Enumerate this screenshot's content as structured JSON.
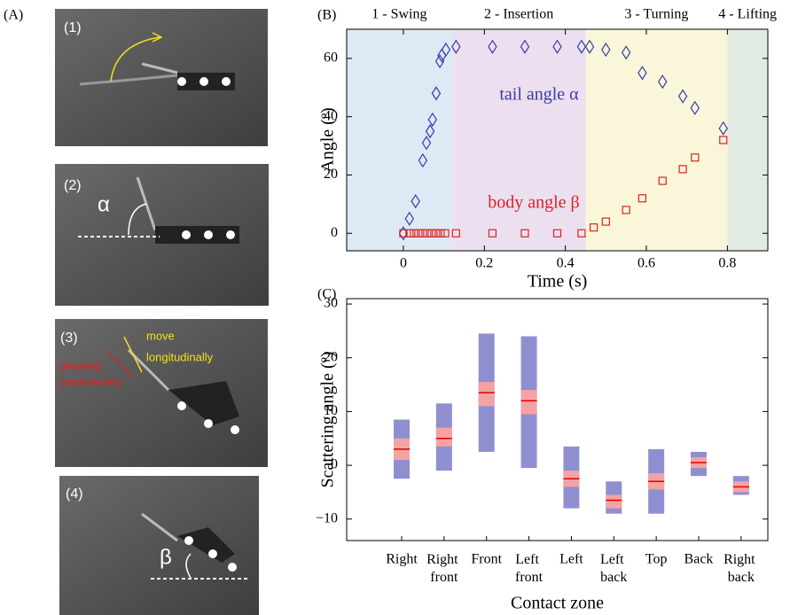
{
  "panel_labels": [
    "(A)",
    "(B)",
    "(C)"
  ],
  "photos": [
    {
      "label": "(1)"
    },
    {
      "label": "(2)",
      "angle": "α"
    },
    {
      "label": "(3)",
      "move": [
        "move",
        "longitudinally"
      ],
      "jam": [
        "jammed",
        "transversely"
      ]
    },
    {
      "label": "(4)",
      "angle": "β"
    }
  ],
  "chart_data": [
    {
      "type": "scatter",
      "xlabel": "Time (s)",
      "ylabel": "Angle (º)",
      "xlim": [
        -0.14,
        0.9
      ],
      "ylim": [
        -6,
        70
      ],
      "xticks": [
        0,
        0.2,
        0.4,
        0.6,
        0.8
      ],
      "yticks": [
        0,
        20,
        40,
        60
      ],
      "phases": [
        {
          "label": "1 - Swing",
          "start": -0.14,
          "end": 0.12,
          "color": "#dde9f5"
        },
        {
          "label": "2 - Insertion",
          "start": 0.12,
          "end": 0.45,
          "color": "#ecdff0"
        },
        {
          "label": "3 - Turning",
          "start": 0.45,
          "end": 0.8,
          "color": "#f9f6da"
        },
        {
          "label": "4 - Lifting",
          "start": 0.8,
          "end": 0.9,
          "color": "#e2ebe1"
        }
      ],
      "series": [
        {
          "name": "tail angle α",
          "color": "#3b3ba6",
          "marker": "diamond",
          "x": [
            0,
            0.015,
            0.03,
            0.048,
            0.057,
            0.066,
            0.072,
            0.081,
            0.09,
            0.095,
            0.105,
            0.13,
            0.22,
            0.3,
            0.38,
            0.44,
            0.46,
            0.5,
            0.55,
            0.59,
            0.64,
            0.69,
            0.72,
            0.79
          ],
          "values": [
            0,
            5,
            11,
            25,
            31,
            35,
            39,
            48,
            59,
            61,
            63,
            64,
            64,
            64,
            64,
            64,
            64,
            63,
            62,
            55,
            52,
            47,
            43,
            36
          ]
        },
        {
          "name": "body angle β",
          "color": "#e0201f",
          "marker": "square",
          "x": [
            0,
            0.015,
            0.026,
            0.037,
            0.048,
            0.059,
            0.07,
            0.081,
            0.092,
            0.103,
            0.13,
            0.22,
            0.3,
            0.38,
            0.44,
            0.47,
            0.5,
            0.55,
            0.59,
            0.64,
            0.69,
            0.72,
            0.79
          ],
          "values": [
            0,
            0,
            0,
            0,
            0,
            0,
            0,
            0,
            0,
            0,
            0,
            0,
            0,
            0,
            0,
            2,
            4,
            8,
            12,
            18,
            22,
            26,
            32
          ]
        }
      ]
    },
    {
      "type": "box",
      "xlabel": "Contact zone",
      "ylabel": "Scattering angle (º)",
      "categories": [
        "Right",
        "Right front",
        "Front",
        "Left front",
        "Left",
        "Left back",
        "Top",
        "Back",
        "Right back"
      ],
      "ylim": [
        -14,
        31
      ],
      "yticks": [
        {
          "value": -10,
          "label": "−10"
        },
        0,
        10,
        20,
        30
      ],
      "range_low": [
        -2.5,
        -1,
        2.5,
        -0.5,
        -8,
        -9,
        -9,
        -2,
        -5.5
      ],
      "range_high": [
        8.5,
        11.5,
        24.5,
        24,
        3.5,
        -3,
        3,
        2.5,
        -2
      ],
      "iqr_low": [
        1,
        3.5,
        11,
        9.5,
        -4,
        -8,
        -4.5,
        -0.5,
        -5
      ],
      "iqr_high": [
        5,
        7,
        15.5,
        14,
        -1,
        -5.5,
        -1.5,
        1.5,
        -3
      ],
      "median": [
        3,
        5,
        13.5,
        12,
        -2.5,
        -6.5,
        -3,
        0.5,
        -4
      ],
      "colors": {
        "range": "#8f8fd0",
        "iqr": "#f4a3a4",
        "median": "#e00000"
      }
    }
  ]
}
